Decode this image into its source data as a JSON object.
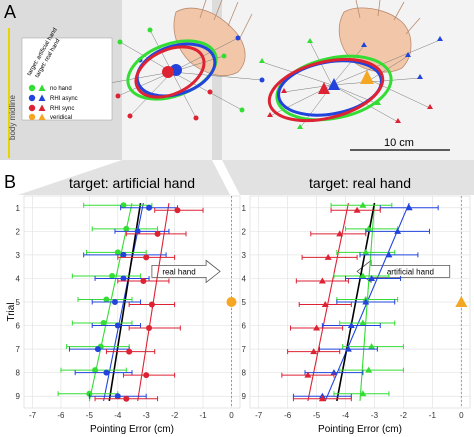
{
  "panel_a": {
    "letter": "A",
    "side_label": "body midline",
    "legend": {
      "col_headers": [
        "target: artificial hand",
        "target: real hand"
      ],
      "rows": [
        "no hand",
        "RHI async",
        "RHI sync",
        "veridical"
      ]
    },
    "scalebar_label": "10 cm"
  },
  "panel_b": {
    "letter": "B",
    "ylabel": "Trial",
    "xlabel": "Pointing Error (cm)"
  },
  "colors": {
    "no_hand": "#33dd33",
    "rhi_async": "#2244dd",
    "rhi_sync": "#dd2233",
    "veridical": "#f5a623",
    "regression": "#000000"
  },
  "chart_data": [
    {
      "type": "scatter",
      "title": "target: artificial hand",
      "annotation": "real hand",
      "xlabel": "Pointing Error (cm)",
      "ylabel": "Trial",
      "xlim": [
        -7.3,
        0.3
      ],
      "xticks": [
        -7,
        -6,
        -5,
        -4,
        -3,
        -2,
        -1,
        0
      ],
      "ylim": [
        9.5,
        0.5
      ],
      "yticks": [
        1,
        2,
        3,
        4,
        5,
        6,
        7,
        8,
        9
      ],
      "grid": true,
      "marker": "circle",
      "veridical_x": 0,
      "veridical_trial": 5,
      "series": [
        {
          "name": "no hand",
          "color": "#33dd33",
          "trials": [
            1,
            2,
            3,
            4,
            5,
            6,
            7,
            8,
            9
          ],
          "mean": [
            -3.8,
            -3.7,
            -4.0,
            -4.2,
            -4.4,
            -4.5,
            -4.6,
            -4.8,
            -5.0
          ],
          "lo": [
            -5.2,
            -4.9,
            -5.1,
            -5.6,
            -5.4,
            -5.6,
            -5.8,
            -6.0,
            -6.1
          ],
          "hi": [
            -2.8,
            -2.6,
            -3.0,
            -3.2,
            -3.5,
            -3.5,
            -3.6,
            -3.7,
            -4.0
          ],
          "fit": [
            -3.5,
            -5.0
          ]
        },
        {
          "name": "RHI async",
          "color": "#2244dd",
          "trials": [
            1,
            2,
            3,
            4,
            5,
            6,
            7,
            8,
            9
          ],
          "mean": [
            -2.9,
            -3.3,
            -3.8,
            -3.8,
            -4.1,
            -4.0,
            -4.7,
            -4.4,
            -4.0
          ],
          "lo": [
            -3.9,
            -4.1,
            -5.2,
            -4.8,
            -4.9,
            -4.9,
            -5.7,
            -5.5,
            -5.0
          ],
          "hi": [
            -1.9,
            -2.2,
            -2.3,
            -2.9,
            -3.2,
            -3.2,
            -3.6,
            -3.5,
            -3.0
          ],
          "fit": [
            -3.1,
            -4.5
          ]
        },
        {
          "name": "RHI sync",
          "color": "#dd2233",
          "trials": [
            1,
            2,
            3,
            4,
            5,
            6,
            7,
            8,
            9
          ],
          "mean": [
            -1.9,
            -2.6,
            -3.0,
            -3.1,
            -2.8,
            -2.9,
            -3.6,
            -3.0,
            -3.7
          ],
          "lo": [
            -2.7,
            -3.7,
            -4.0,
            -4.0,
            -3.6,
            -3.6,
            -4.4,
            -3.8,
            -4.8
          ],
          "hi": [
            -1.0,
            -1.6,
            -2.0,
            -2.2,
            -2.0,
            -1.8,
            -2.7,
            -2.0,
            -2.6
          ],
          "fit": [
            -2.2,
            -3.3
          ]
        },
        {
          "name": "regression",
          "color": "#000000",
          "fit": [
            -3.2,
            -4.3
          ]
        }
      ]
    },
    {
      "type": "scatter",
      "title": "target: real hand",
      "annotation": "artificial hand",
      "xlabel": "Pointing Error (cm)",
      "ylabel": "Trial",
      "xlim": [
        -7.3,
        0.3
      ],
      "xticks": [
        -7,
        -6,
        -5,
        -4,
        -3,
        -2,
        -1,
        0
      ],
      "ylim": [
        9.5,
        0.5
      ],
      "yticks": [
        1,
        2,
        3,
        4,
        5,
        6,
        7,
        8,
        9
      ],
      "grid": true,
      "marker": "triangle",
      "veridical_x": 0,
      "veridical_trial": 5,
      "series": [
        {
          "name": "no hand",
          "color": "#33dd33",
          "trials": [
            1,
            2,
            3,
            4,
            5,
            6,
            7,
            8,
            9
          ],
          "mean": [
            -3.4,
            -3.2,
            -3.3,
            -3.4,
            -3.3,
            -3.4,
            -3.1,
            -3.2,
            -3.4
          ],
          "lo": [
            -4.5,
            -4.0,
            -4.3,
            -4.4,
            -4.3,
            -4.2,
            -4.1,
            -4.2,
            -4.4
          ],
          "hi": [
            -2.4,
            -2.2,
            -2.3,
            -2.5,
            -2.2,
            -2.3,
            -2.0,
            -2.0,
            -2.5
          ],
          "fit": [
            -3.0,
            -3.5
          ]
        },
        {
          "name": "RHI async",
          "color": "#2244dd",
          "trials": [
            1,
            2,
            3,
            4,
            5,
            6,
            7,
            8,
            9
          ],
          "mean": [
            -1.8,
            -2.2,
            -2.5,
            -3.1,
            -3.3,
            -3.8,
            -3.9,
            -4.4,
            -4.8
          ],
          "lo": [
            -2.8,
            -3.3,
            -3.5,
            -4.0,
            -4.3,
            -4.8,
            -4.9,
            -5.4,
            -5.8
          ],
          "hi": [
            -0.8,
            -1.1,
            -1.5,
            -2.1,
            -2.3,
            -2.8,
            -2.9,
            -3.4,
            -3.8
          ],
          "fit": [
            -1.8,
            -4.7
          ]
        },
        {
          "name": "RHI sync",
          "color": "#dd2233",
          "trials": [
            1,
            2,
            3,
            4,
            5,
            6,
            7,
            8,
            9
          ],
          "mean": [
            -3.6,
            -4.2,
            -4.6,
            -4.8,
            -4.7,
            -5.0,
            -5.1,
            -5.3,
            -4.8
          ],
          "lo": [
            -4.5,
            -5.2,
            -5.5,
            -5.7,
            -5.6,
            -5.9,
            -6.0,
            -6.2,
            -5.8
          ],
          "hi": [
            -2.8,
            -3.3,
            -3.6,
            -3.9,
            -3.8,
            -4.1,
            -4.2,
            -4.4,
            -3.8
          ],
          "fit": [
            -3.9,
            -5.3
          ]
        },
        {
          "name": "regression",
          "color": "#000000",
          "fit": [
            -3.0,
            -4.3
          ]
        }
      ]
    }
  ]
}
